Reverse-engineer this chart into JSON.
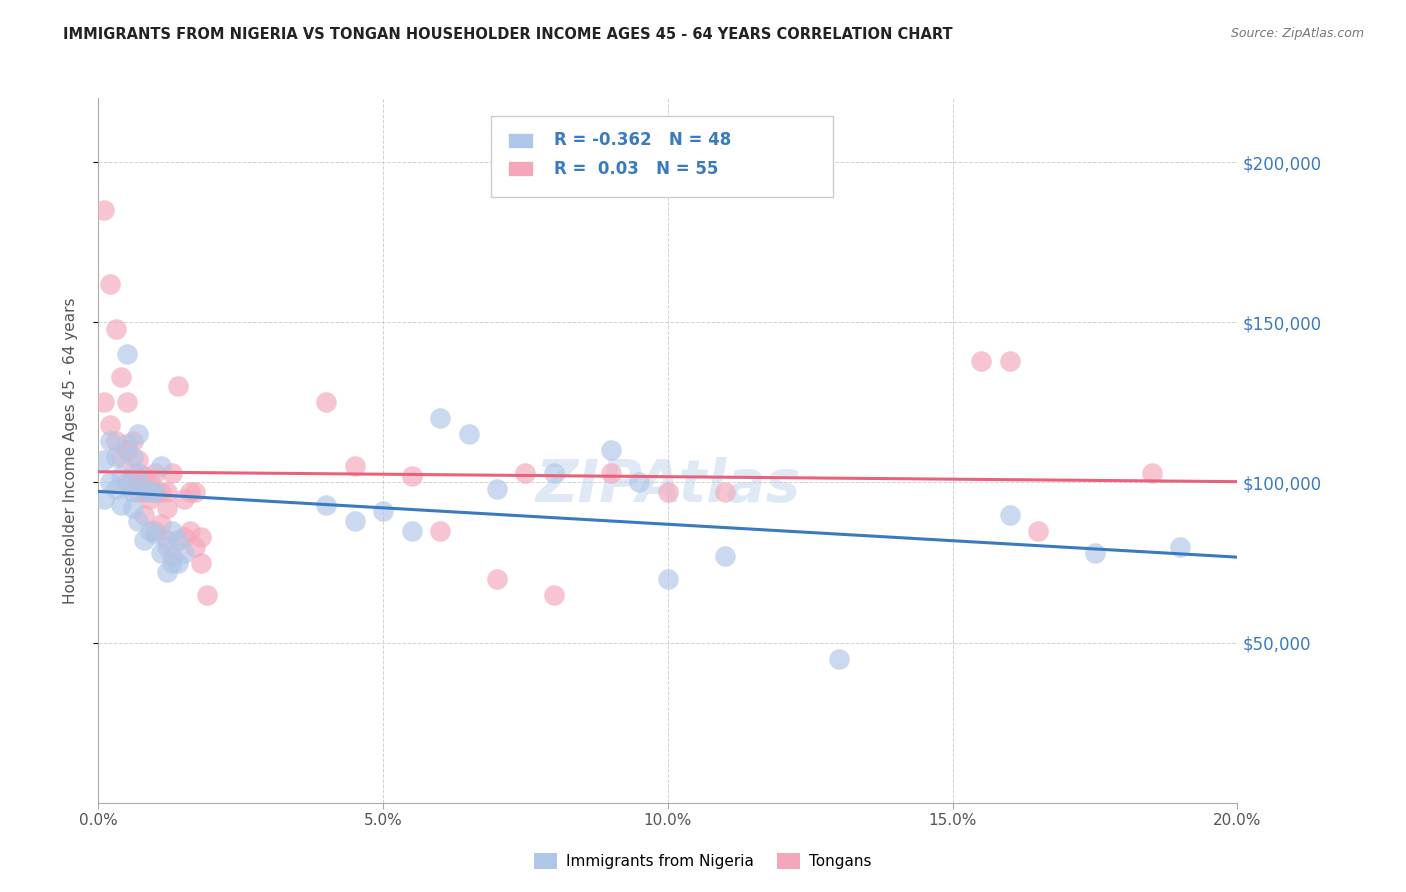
{
  "title": "IMMIGRANTS FROM NIGERIA VS TONGAN HOUSEHOLDER INCOME AGES 45 - 64 YEARS CORRELATION CHART",
  "source": "Source: ZipAtlas.com",
  "ylabel": "Householder Income Ages 45 - 64 years",
  "xmin": 0.0,
  "xmax": 0.2,
  "ymin": 0,
  "ymax": 220000,
  "ytick_labels": [
    "$50,000",
    "$100,000",
    "$150,000",
    "$200,000"
  ],
  "ytick_values": [
    50000,
    100000,
    150000,
    200000
  ],
  "xtick_labels": [
    "0.0%",
    "5.0%",
    "10.0%",
    "15.0%",
    "20.0%"
  ],
  "xtick_values": [
    0.0,
    0.05,
    0.1,
    0.15,
    0.2
  ],
  "nigeria_color": "#aec6e8",
  "tongan_color": "#f4a7b9",
  "nigeria_line_color": "#3a7bbf",
  "tongan_line_color": "#e8627a",
  "nigeria_R": -0.362,
  "nigeria_N": 48,
  "tongan_R": 0.03,
  "tongan_N": 55,
  "legend_label_nigeria": "Immigrants from Nigeria",
  "legend_label_tongan": "Tongans",
  "nigeria_x": [
    0.001,
    0.001,
    0.002,
    0.002,
    0.003,
    0.003,
    0.004,
    0.004,
    0.005,
    0.005,
    0.005,
    0.006,
    0.006,
    0.006,
    0.007,
    0.007,
    0.007,
    0.008,
    0.008,
    0.009,
    0.009,
    0.01,
    0.01,
    0.011,
    0.011,
    0.012,
    0.012,
    0.013,
    0.013,
    0.014,
    0.014,
    0.015,
    0.04,
    0.045,
    0.05,
    0.055,
    0.06,
    0.065,
    0.07,
    0.08,
    0.09,
    0.095,
    0.1,
    0.11,
    0.13,
    0.16,
    0.175,
    0.19
  ],
  "nigeria_y": [
    107000,
    95000,
    113000,
    100000,
    108000,
    98000,
    102000,
    93000,
    140000,
    112000,
    99000,
    108000,
    97000,
    92000,
    115000,
    103000,
    88000,
    98000,
    82000,
    97000,
    85000,
    97000,
    84000,
    105000,
    78000,
    80000,
    72000,
    85000,
    75000,
    82000,
    75000,
    78000,
    93000,
    88000,
    91000,
    85000,
    120000,
    115000,
    98000,
    103000,
    110000,
    100000,
    70000,
    77000,
    45000,
    90000,
    78000,
    80000
  ],
  "tongan_x": [
    0.001,
    0.001,
    0.002,
    0.002,
    0.003,
    0.003,
    0.004,
    0.004,
    0.005,
    0.005,
    0.005,
    0.006,
    0.006,
    0.007,
    0.007,
    0.007,
    0.008,
    0.008,
    0.008,
    0.009,
    0.009,
    0.01,
    0.01,
    0.01,
    0.011,
    0.011,
    0.012,
    0.012,
    0.012,
    0.013,
    0.013,
    0.014,
    0.015,
    0.015,
    0.016,
    0.016,
    0.017,
    0.017,
    0.018,
    0.018,
    0.019,
    0.04,
    0.045,
    0.055,
    0.06,
    0.07,
    0.075,
    0.08,
    0.09,
    0.1,
    0.11,
    0.155,
    0.16,
    0.165,
    0.185
  ],
  "tongan_y": [
    185000,
    125000,
    162000,
    118000,
    148000,
    113000,
    133000,
    108000,
    125000,
    110000,
    100000,
    113000,
    103000,
    107000,
    100000,
    97000,
    102000,
    97000,
    90000,
    100000,
    95000,
    103000,
    97000,
    85000,
    97000,
    87000,
    97000,
    92000,
    82000,
    103000,
    77000,
    130000,
    95000,
    83000,
    97000,
    85000,
    97000,
    80000,
    83000,
    75000,
    65000,
    125000,
    105000,
    102000,
    85000,
    70000,
    103000,
    65000,
    103000,
    97000,
    97000,
    138000,
    138000,
    85000,
    103000
  ]
}
